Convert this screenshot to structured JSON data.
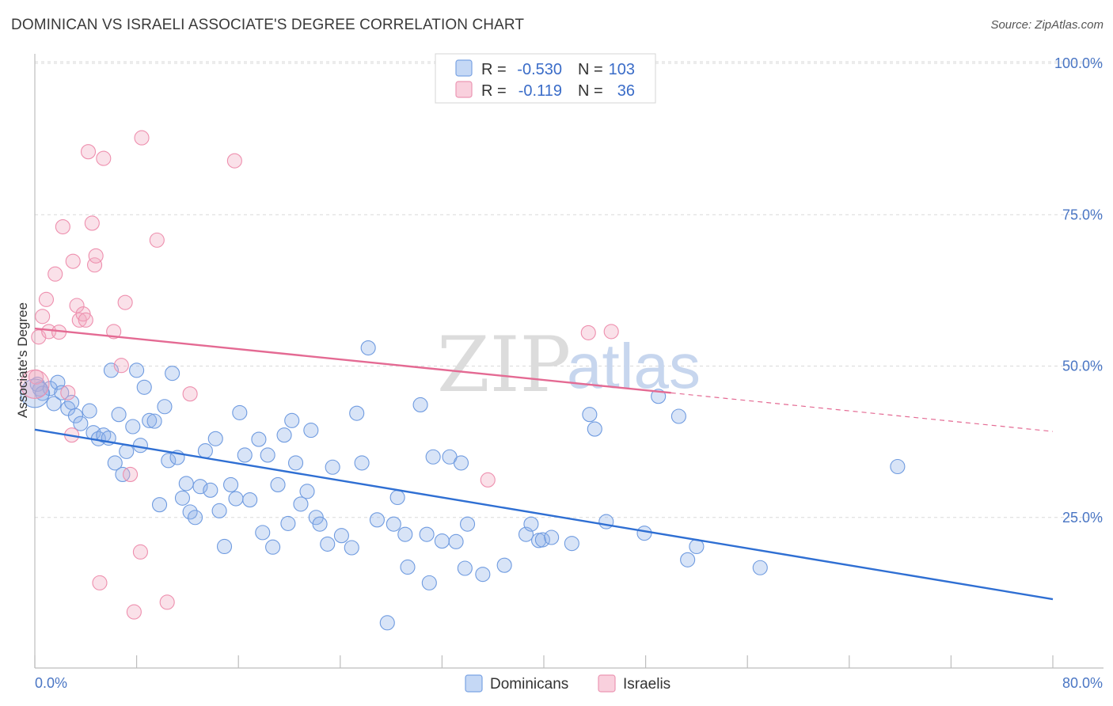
{
  "title": "DOMINICAN VS ISRAELI ASSOCIATE'S DEGREE CORRELATION CHART",
  "source": "Source: ZipAtlas.com",
  "watermark": {
    "left": "ZIP",
    "right": "atlas"
  },
  "colors": {
    "blue": "#8fb3e8",
    "blue_stroke": "#6f9be0",
    "blue_line": "#2f6fd3",
    "pink": "#f2a9c0",
    "pink_stroke": "#ee8fae",
    "pink_line": "#e46a93",
    "tick": "#4a76c4",
    "grid": "#d9d9d9"
  },
  "legend_top": {
    "rows": [
      {
        "r_label": "R =",
        "r_value": "-0.530",
        "n_label": "N =",
        "n_value": "103",
        "color": "blue"
      },
      {
        "r_label": "R =",
        "r_value": "-0.119",
        "n_label": "N =",
        "n_value": "36",
        "color": "pink"
      }
    ]
  },
  "chart_data": {
    "type": "scatter",
    "ylabel": "Associate's Degree",
    "xlim": [
      0,
      80
    ],
    "ylim": [
      0,
      100
    ],
    "x_tick_labels": [
      "0.0%",
      "80.0%"
    ],
    "y_ticks": [
      25,
      50,
      75,
      100
    ],
    "y_tick_labels": [
      "25.0%",
      "50.0%",
      "75.0%",
      "100.0%"
    ],
    "grid": "horizontal dashed",
    "legend_placement": "top-center",
    "series": [
      {
        "name": "Dominicans",
        "color": "blue",
        "trend": {
          "x": [
            0,
            80
          ],
          "y": [
            39.5,
            11.5
          ],
          "solid_until": 80
        },
        "points": [
          [
            0.2,
            47.0
          ],
          [
            0.4,
            46.2
          ],
          [
            0.6,
            45.5
          ],
          [
            1.2,
            46.3
          ],
          [
            1.5,
            43.8
          ],
          [
            1.8,
            47.3
          ],
          [
            2.1,
            45.6
          ],
          [
            2.6,
            43.0
          ],
          [
            2.9,
            44.0
          ],
          [
            3.2,
            41.8
          ],
          [
            3.6,
            40.5
          ],
          [
            4.3,
            42.6
          ],
          [
            4.6,
            39.0
          ],
          [
            5.0,
            38.0
          ],
          [
            5.4,
            38.6
          ],
          [
            5.8,
            38.1
          ],
          [
            6.0,
            49.3
          ],
          [
            6.3,
            34.0
          ],
          [
            6.6,
            42.0
          ],
          [
            6.9,
            32.1
          ],
          [
            7.2,
            35.9
          ],
          [
            7.7,
            40.0
          ],
          [
            8.0,
            49.3
          ],
          [
            8.3,
            36.9
          ],
          [
            8.6,
            46.5
          ],
          [
            9.0,
            41.0
          ],
          [
            9.4,
            40.9
          ],
          [
            9.8,
            27.1
          ],
          [
            10.2,
            43.3
          ],
          [
            10.5,
            34.4
          ],
          [
            10.8,
            48.8
          ],
          [
            11.2,
            34.9
          ],
          [
            11.6,
            28.2
          ],
          [
            11.9,
            30.6
          ],
          [
            12.2,
            25.9
          ],
          [
            12.6,
            25.0
          ],
          [
            13.0,
            30.1
          ],
          [
            13.4,
            36.0
          ],
          [
            13.8,
            29.5
          ],
          [
            14.2,
            38.0
          ],
          [
            14.5,
            26.1
          ],
          [
            14.9,
            20.2
          ],
          [
            15.4,
            30.4
          ],
          [
            15.8,
            28.1
          ],
          [
            16.1,
            42.3
          ],
          [
            16.5,
            35.3
          ],
          [
            16.9,
            27.9
          ],
          [
            17.6,
            37.9
          ],
          [
            17.9,
            22.5
          ],
          [
            18.3,
            35.3
          ],
          [
            18.7,
            20.1
          ],
          [
            19.1,
            30.4
          ],
          [
            19.6,
            38.6
          ],
          [
            19.9,
            24.0
          ],
          [
            20.2,
            41.0
          ],
          [
            20.5,
            34.0
          ],
          [
            20.9,
            27.2
          ],
          [
            21.4,
            29.3
          ],
          [
            21.7,
            39.4
          ],
          [
            22.1,
            25.0
          ],
          [
            22.4,
            23.9
          ],
          [
            23.0,
            20.6
          ],
          [
            23.4,
            33.3
          ],
          [
            24.1,
            22.0
          ],
          [
            24.9,
            20.0
          ],
          [
            25.3,
            42.2
          ],
          [
            25.7,
            34.0
          ],
          [
            26.2,
            53.0
          ],
          [
            26.9,
            24.6
          ],
          [
            27.7,
            7.6
          ],
          [
            28.2,
            23.9
          ],
          [
            28.5,
            28.3
          ],
          [
            29.1,
            22.2
          ],
          [
            29.3,
            16.8
          ],
          [
            30.3,
            43.6
          ],
          [
            30.8,
            22.2
          ],
          [
            31.0,
            14.2
          ],
          [
            31.3,
            35.0
          ],
          [
            32.0,
            21.1
          ],
          [
            32.6,
            35.0
          ],
          [
            33.1,
            21.0
          ],
          [
            33.5,
            34.0
          ],
          [
            33.8,
            16.6
          ],
          [
            34.0,
            23.9
          ],
          [
            35.2,
            15.6
          ],
          [
            36.9,
            17.1
          ],
          [
            38.6,
            22.2
          ],
          [
            39.0,
            23.9
          ],
          [
            39.6,
            21.2
          ],
          [
            39.9,
            21.3
          ],
          [
            40.6,
            21.7
          ],
          [
            42.2,
            20.7
          ],
          [
            43.6,
            42.0
          ],
          [
            44.0,
            39.6
          ],
          [
            44.9,
            24.3
          ],
          [
            47.9,
            22.4
          ],
          [
            49.0,
            45.0
          ],
          [
            50.6,
            41.7
          ],
          [
            51.3,
            18.0
          ],
          [
            52.0,
            20.2
          ],
          [
            57.0,
            16.7
          ],
          [
            67.8,
            33.4
          ],
          [
            0.0,
            45.5
          ]
        ]
      },
      {
        "name": "Israelis",
        "color": "pink",
        "trend": {
          "x": [
            0,
            80
          ],
          "y": [
            56.2,
            39.2
          ],
          "solid_until": 50
        },
        "points": [
          [
            0.1,
            48.2
          ],
          [
            0.3,
            54.8
          ],
          [
            0.6,
            58.2
          ],
          [
            0.9,
            61.0
          ],
          [
            1.1,
            55.7
          ],
          [
            1.6,
            65.2
          ],
          [
            1.9,
            55.6
          ],
          [
            2.2,
            73.0
          ],
          [
            2.6,
            45.6
          ],
          [
            2.9,
            38.6
          ],
          [
            3.0,
            67.3
          ],
          [
            3.3,
            60.0
          ],
          [
            3.5,
            57.6
          ],
          [
            3.8,
            58.6
          ],
          [
            4.0,
            57.6
          ],
          [
            4.2,
            85.4
          ],
          [
            4.5,
            73.6
          ],
          [
            4.7,
            66.7
          ],
          [
            4.8,
            68.2
          ],
          [
            5.1,
            14.2
          ],
          [
            5.4,
            84.3
          ],
          [
            6.2,
            55.7
          ],
          [
            6.8,
            50.1
          ],
          [
            7.1,
            60.5
          ],
          [
            7.5,
            32.1
          ],
          [
            7.8,
            9.4
          ],
          [
            8.3,
            19.3
          ],
          [
            8.4,
            87.7
          ],
          [
            9.6,
            70.8
          ],
          [
            10.4,
            11.0
          ],
          [
            12.2,
            45.4
          ],
          [
            15.7,
            83.9
          ],
          [
            35.6,
            31.2
          ],
          [
            43.5,
            55.5
          ],
          [
            45.3,
            55.7
          ],
          [
            0.0,
            47.0
          ]
        ]
      }
    ]
  }
}
